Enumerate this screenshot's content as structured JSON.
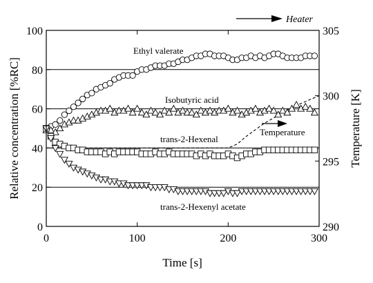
{
  "chart_data": {
    "type": "scatter",
    "title": "",
    "xlabel": "Time [s]",
    "ylabel": "Relative concentration [%RC]",
    "y2label": "Temperature [K]",
    "xlim": [
      0,
      300
    ],
    "ylim": [
      0,
      100
    ],
    "y2lim": [
      290,
      305
    ],
    "x_ticks": [
      "0",
      "100",
      "200",
      "300"
    ],
    "y_ticks": [
      "0",
      "20",
      "40",
      "60",
      "80",
      "100"
    ],
    "y2_ticks": [
      "290",
      "295",
      "300",
      "305"
    ],
    "grid_lines_y": [
      20,
      40,
      60,
      80
    ],
    "annotations": {
      "heater": "Heater",
      "temperature": "Temperature"
    },
    "series": [
      {
        "name": "Ethyl valerate",
        "marker": "circle",
        "x": [
          0,
          5,
          10,
          15,
          20,
          25,
          30,
          35,
          40,
          45,
          50,
          55,
          60,
          65,
          70,
          75,
          80,
          85,
          90,
          95,
          100,
          105,
          110,
          115,
          120,
          125,
          130,
          135,
          140,
          145,
          150,
          155,
          160,
          165,
          170,
          175,
          180,
          185,
          190,
          195,
          200,
          205,
          210,
          215,
          220,
          225,
          230,
          235,
          240,
          245,
          250,
          255,
          260,
          265,
          270,
          275,
          280,
          285,
          290,
          295
        ],
        "y": [
          50,
          51,
          52,
          54,
          57,
          59,
          61,
          63,
          65,
          67,
          68,
          70,
          71,
          72,
          73,
          75,
          76,
          77,
          77,
          77,
          79,
          80,
          80,
          81,
          82,
          82,
          82,
          83,
          83,
          84,
          85,
          85,
          86,
          87,
          87,
          88,
          88,
          87,
          87,
          87,
          86,
          85,
          85,
          86,
          86,
          87,
          86,
          87,
          86,
          87,
          88,
          88,
          87,
          86,
          86,
          86,
          86,
          87,
          87,
          87
        ]
      },
      {
        "name": "Isobutyric acid",
        "marker": "triangle-up",
        "x": [
          0,
          5,
          10,
          15,
          20,
          25,
          30,
          35,
          40,
          45,
          50,
          55,
          60,
          65,
          70,
          75,
          80,
          85,
          90,
          95,
          100,
          105,
          110,
          115,
          120,
          125,
          130,
          135,
          140,
          145,
          150,
          155,
          160,
          165,
          170,
          175,
          180,
          185,
          190,
          195,
          200,
          205,
          210,
          215,
          220,
          225,
          230,
          235,
          240,
          245,
          250,
          255,
          260,
          265,
          270,
          275,
          280,
          285,
          290,
          295
        ],
        "y": [
          49,
          49,
          48,
          50,
          52,
          53,
          54,
          54,
          55,
          56,
          57,
          58,
          59,
          59,
          60,
          58,
          59,
          59,
          60,
          58,
          60,
          58,
          57,
          59,
          58,
          57,
          59,
          58,
          60,
          58,
          59,
          58,
          58,
          57,
          59,
          58,
          59,
          58,
          59,
          59,
          60,
          58,
          59,
          57,
          58,
          59,
          60,
          58,
          59,
          60,
          59,
          57,
          59,
          58,
          60,
          62,
          60,
          61,
          60,
          58
        ]
      },
      {
        "name": "trans-2-Hexenal",
        "marker": "square",
        "x": [
          0,
          5,
          10,
          15,
          20,
          25,
          30,
          35,
          40,
          45,
          50,
          55,
          60,
          65,
          70,
          75,
          80,
          85,
          90,
          95,
          100,
          105,
          110,
          115,
          120,
          125,
          130,
          135,
          140,
          145,
          150,
          155,
          160,
          165,
          170,
          175,
          180,
          185,
          190,
          195,
          200,
          205,
          210,
          215,
          220,
          225,
          230,
          235,
          240,
          245,
          250,
          255,
          260,
          265,
          270,
          275,
          280,
          285,
          290,
          295
        ],
        "y": [
          50,
          46,
          43,
          42,
          41,
          40,
          40,
          39,
          39,
          38,
          38,
          38,
          38,
          37,
          38,
          37,
          38,
          38,
          38,
          38,
          38,
          37,
          37,
          37,
          38,
          37,
          37,
          38,
          37,
          37,
          37,
          37,
          37,
          36,
          37,
          36,
          37,
          36,
          36,
          36,
          37,
          36,
          35,
          36,
          37,
          37,
          38,
          38,
          39,
          39,
          39,
          39,
          39,
          39,
          39,
          39,
          39,
          39,
          39,
          39
        ]
      },
      {
        "name": "trans-2-Hexenyl acetate",
        "marker": "triangle-down",
        "x": [
          0,
          5,
          10,
          15,
          20,
          25,
          30,
          35,
          40,
          45,
          50,
          55,
          60,
          65,
          70,
          75,
          80,
          85,
          90,
          95,
          100,
          105,
          110,
          115,
          120,
          125,
          130,
          135,
          140,
          145,
          150,
          155,
          160,
          165,
          170,
          175,
          180,
          185,
          190,
          195,
          200,
          205,
          210,
          215,
          220,
          225,
          230,
          235,
          240,
          245,
          250,
          255,
          260,
          265,
          270,
          275,
          280,
          285,
          290,
          295
        ],
        "y": [
          50,
          45,
          40,
          37,
          34,
          32,
          30,
          29,
          28,
          27,
          26,
          25,
          24,
          24,
          23,
          23,
          22,
          22,
          21,
          21,
          21,
          21,
          21,
          20,
          20,
          20,
          20,
          19,
          19,
          18,
          18,
          18,
          18,
          18,
          18,
          18,
          17,
          17,
          17,
          17,
          18,
          17,
          17,
          18,
          18,
          18,
          18,
          18,
          18,
          18,
          18,
          18,
          18,
          18,
          18,
          18,
          18,
          18,
          18,
          18
        ]
      }
    ],
    "temperature": {
      "name": "Temperature",
      "axis": "right",
      "style": "dashed",
      "x": [
        0,
        10,
        20,
        30,
        50,
        80,
        120,
        160,
        200,
        210,
        220,
        230,
        240,
        250,
        260,
        270,
        280,
        290,
        300
      ],
      "y": [
        296.0,
        296.0,
        296.0,
        296.0,
        296.0,
        296.0,
        296.0,
        296.0,
        296.0,
        296.3,
        296.9,
        297.4,
        297.9,
        298.3,
        298.7,
        299.1,
        299.4,
        299.7,
        300.0
      ]
    }
  }
}
